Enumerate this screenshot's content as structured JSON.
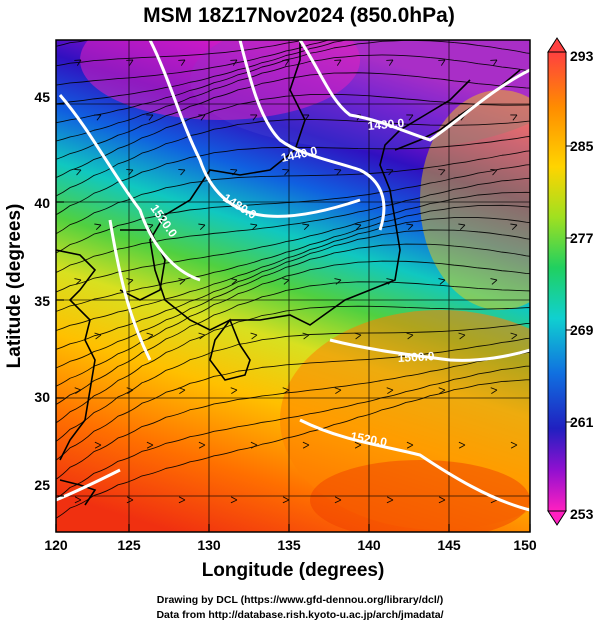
{
  "title": "MSM 18Z17Nov2024 (850.0hPa)",
  "xaxis": {
    "label": "Longitude (degrees)",
    "ticks": [
      "120",
      "125",
      "130",
      "135",
      "140",
      "145",
      "150"
    ]
  },
  "yaxis": {
    "label": "Latitude  (degrees)",
    "ticks": [
      "25",
      "30",
      "35",
      "40",
      "45"
    ]
  },
  "colorbar": {
    "ticks": [
      "293",
      "285",
      "277",
      "269",
      "261",
      "253"
    ],
    "colors": [
      "#ff4040",
      "#ff8c00",
      "#ffd400",
      "#a0e020",
      "#20d060",
      "#10d0d0",
      "#1070e0",
      "#2020c0",
      "#9010d0",
      "#ff20c0"
    ]
  },
  "contours": [
    {
      "label": "1430.0"
    },
    {
      "label": "1440.0"
    },
    {
      "label": "1480.0"
    },
    {
      "label": "1520.0"
    },
    {
      "label": "1500.0"
    },
    {
      "label": "1520.0"
    }
  ],
  "footer": {
    "line1": "Drawing by DCL (https://www.gfd-dennou.org/library/dcl/)",
    "line2": "Data from http://database.rish.kyoto-u.ac.jp/arch/jmadata/"
  }
}
